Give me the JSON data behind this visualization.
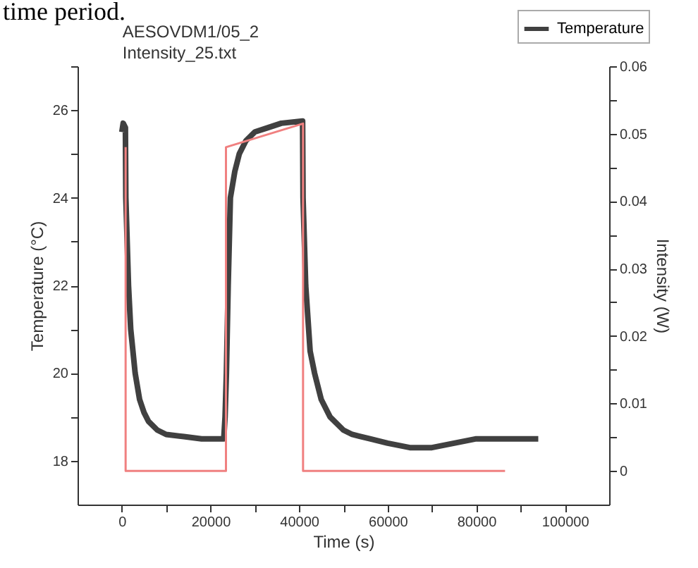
{
  "chart_data": {
    "type": "line",
    "title": "AESOVDM1/05_2\nIntensity_25.txt",
    "xlabel": "Time (s)",
    "ylabel": "Temperature (°C)",
    "y2label": "Intensity (W)",
    "annotations": [
      "time period."
    ],
    "series": [
      {
        "name": "Temperature",
        "color": "#404040",
        "x": [
          0,
          300,
          800,
          900,
          1500,
          2000,
          3000,
          4000,
          5000,
          6000,
          8000,
          10000,
          14000,
          18000,
          23000,
          23300,
          23600,
          24000,
          24500,
          25500,
          26500,
          28000,
          30000,
          33000,
          36000,
          40800,
          40900,
          41500,
          42500,
          43500,
          45000,
          47000,
          50000,
          52000,
          56000,
          60000,
          65000,
          70000,
          75000,
          80000,
          87000,
          94000
        ],
        "values": [
          25.5,
          25.7,
          25.6,
          24,
          22,
          21,
          20,
          19.4,
          19.1,
          18.9,
          18.7,
          18.6,
          18.55,
          18.5,
          18.5,
          19,
          20,
          22,
          24,
          24.6,
          25,
          25.3,
          25.5,
          25.6,
          25.7,
          25.75,
          24,
          22,
          20.5,
          20,
          19.4,
          19,
          18.7,
          18.6,
          18.5,
          18.4,
          18.3,
          18.3,
          18.4,
          18.5,
          18.5,
          18.5
        ]
      },
      {
        "color": "#f08080",
        "axis": "y2",
        "x": [
          850,
          850,
          23500,
          23500,
          40900,
          40900,
          86500
        ],
        "values": [
          0.048,
          0,
          0,
          0.048,
          0.0515,
          0,
          0
        ]
      }
    ],
    "xlim": [
      -10000,
      110000
    ],
    "xticks": [
      0,
      {
        "value": 10000,
        "label": null
      },
      20000,
      {
        "value": 30000,
        "label": null
      },
      40000,
      {
        "value": 50000,
        "label": null
      },
      60000,
      {
        "value": 70000,
        "label": null
      },
      80000,
      {
        "value": 90000,
        "label": null
      },
      100000
    ],
    "ylim": [
      17,
      27
    ],
    "yticks": [
      18,
      {
        "value": 19,
        "label": null
      },
      20,
      {
        "value": 21,
        "label": null
      },
      22,
      {
        "value": 23,
        "label": null
      },
      24,
      {
        "value": 25,
        "label": null
      },
      26,
      {
        "value": 27,
        "label": null
      }
    ],
    "y2lim": [
      -0.005,
      0.06
    ],
    "y2ticks": [
      0,
      {
        "value": 0.005,
        "label": null
      },
      {
        "value": 0.01,
        "label": "0.01"
      },
      {
        "value": 0.015,
        "label": null
      },
      {
        "value": 0.02,
        "label": "0.02"
      },
      {
        "value": 0.025,
        "label": null
      },
      {
        "value": 0.03,
        "label": "0.03"
      },
      {
        "value": 0.035,
        "label": null
      },
      {
        "value": 0.04,
        "label": "0.04"
      },
      {
        "value": 0.045,
        "label": null
      },
      {
        "value": 0.05,
        "label": "0.05"
      },
      {
        "value": 0.055,
        "label": null
      },
      {
        "value": 0.06,
        "label": "0.06"
      }
    ],
    "grid": false,
    "legend": "top right",
    "marker": "none",
    "line_style": "solid"
  }
}
